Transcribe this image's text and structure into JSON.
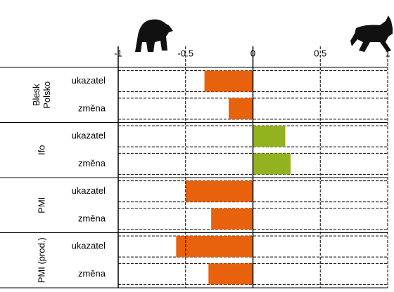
{
  "chart_data": {
    "type": "bar",
    "orientation": "horizontal",
    "groups": [
      {
        "label_lines": [
          "Blesk",
          "Polsko"
        ],
        "size": 2
      },
      {
        "label_lines": [
          "Ifo"
        ],
        "size": 2
      },
      {
        "label_lines": [
          "PMI"
        ],
        "size": 2
      },
      {
        "label_lines": [
          "PMI (prod.)"
        ],
        "size": 2
      }
    ],
    "categories": [
      "ukazatel",
      "změna",
      "ukazatel",
      "změna",
      "ukazatel",
      "změna",
      "ukazatel",
      "změna"
    ],
    "values": [
      -0.36,
      -0.18,
      0.24,
      0.28,
      -0.5,
      -0.31,
      -0.57,
      -0.33
    ],
    "colors": [
      "#e8620e",
      "#e8620e",
      "#92b31f",
      "#92b31f",
      "#e8620e",
      "#e8620e",
      "#e8620e",
      "#e8620e"
    ],
    "xlim": [
      -1,
      1
    ],
    "xticks": [
      -1,
      -0.5,
      0,
      0.5,
      1
    ],
    "grid": true
  }
}
